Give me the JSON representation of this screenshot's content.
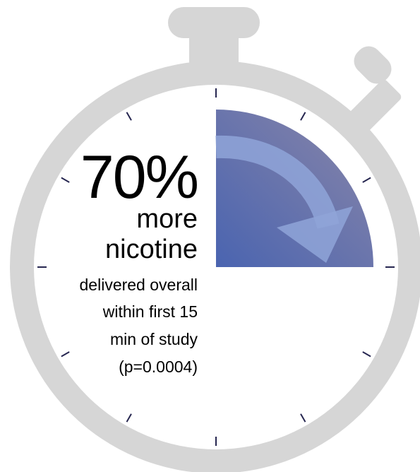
{
  "stat": {
    "headline": "70%",
    "subhead_line1": "more",
    "subhead_line2": "nicotine",
    "detail_lines": [
      "delivered overall",
      "within first 15",
      "min of study",
      "(p=0.0004)"
    ]
  },
  "elapsed_fraction": 0.25,
  "colors": {
    "watch_body": "#d6d6d6",
    "face": "#ffffff",
    "tick": "#262650",
    "wedge_start": "#4a64b0",
    "wedge_end": "#8a86a8",
    "arrow": "#8fa4d8",
    "text": "#000000"
  },
  "icons": {
    "stopwatch": "stopwatch-icon",
    "arrow": "clockwise-arrow-icon"
  }
}
